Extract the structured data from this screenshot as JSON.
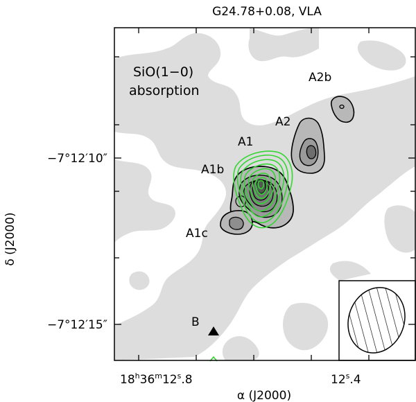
{
  "chart_data": {
    "type": "contour",
    "title": "G24.78+0.08, VLA",
    "xlabel": "α (J2000)",
    "ylabel": "δ (J2000)",
    "x_ticks": [
      {
        "main": "18",
        "sup1": "h",
        "mid": "36",
        "sup2": "m",
        "sec": "12",
        "sup3": "s",
        "frac": ".8"
      },
      {
        "sec": "12",
        "sup3": "s",
        "frac": ".4"
      }
    ],
    "y_ticks": [
      "−7°12′10″",
      "−7°12′15″"
    ],
    "annotations": {
      "line_label_1": "SiO(1−0)",
      "line_label_2": "absorption",
      "sources": [
        "A2b",
        "A2",
        "A1",
        "A1b",
        "A1c",
        "B"
      ]
    },
    "colors": {
      "absorption_fill": "#dddddd",
      "absorption_mid": "#b8b8b8",
      "absorption_dark": "#6e6e6e",
      "emission_contours": "#33d633",
      "contours": "#000000"
    },
    "beam": "hatched ellipse (synthesized beam), lower-right inset",
    "marker_B": "filled triangle"
  }
}
